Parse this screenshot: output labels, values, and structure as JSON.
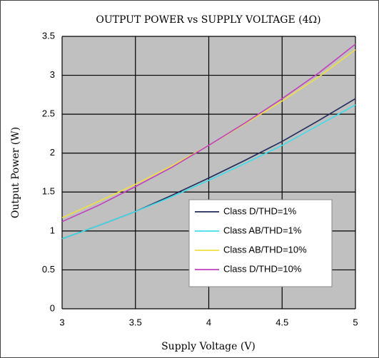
{
  "chart_data": {
    "type": "line",
    "title": "OUTPUT POWER vs SUPPLY VOLTAGE (4Ω)",
    "x_label": "Supply Voltage (V)",
    "y_label": "Output Power (W)",
    "x": [
      3,
      3.25,
      3.5,
      3.75,
      4,
      4.25,
      4.5,
      4.75,
      5
    ],
    "series": [
      {
        "name": "Class D/THD=1%",
        "color": "#1f2a5a",
        "values": [
          0.9,
          1.07,
          1.25,
          1.46,
          1.68,
          1.91,
          2.15,
          2.42,
          2.7
        ]
      },
      {
        "name": "Class AB/THD=1%",
        "color": "#40dde8",
        "values": [
          0.9,
          1.07,
          1.25,
          1.44,
          1.65,
          1.87,
          2.1,
          2.36,
          2.62
        ]
      },
      {
        "name": "Class AB/THD=10%",
        "color": "#f0e040",
        "values": [
          1.17,
          1.38,
          1.6,
          1.84,
          2.1,
          2.38,
          2.67,
          2.98,
          3.33
        ]
      },
      {
        "name": "Class D/THD=10%",
        "color": "#c040c0",
        "values": [
          1.12,
          1.33,
          1.57,
          1.82,
          2.1,
          2.39,
          2.7,
          3.03,
          3.4
        ]
      }
    ],
    "xlim": [
      3,
      5
    ],
    "xticks": [
      3,
      3.5,
      4,
      4.5,
      5
    ],
    "ylim": [
      0,
      3.5
    ],
    "yticks": [
      0,
      0.5,
      1,
      1.5,
      2,
      2.5,
      3,
      3.5
    ],
    "grid": true,
    "legend": "lower right",
    "background": "#c0c0c0"
  }
}
